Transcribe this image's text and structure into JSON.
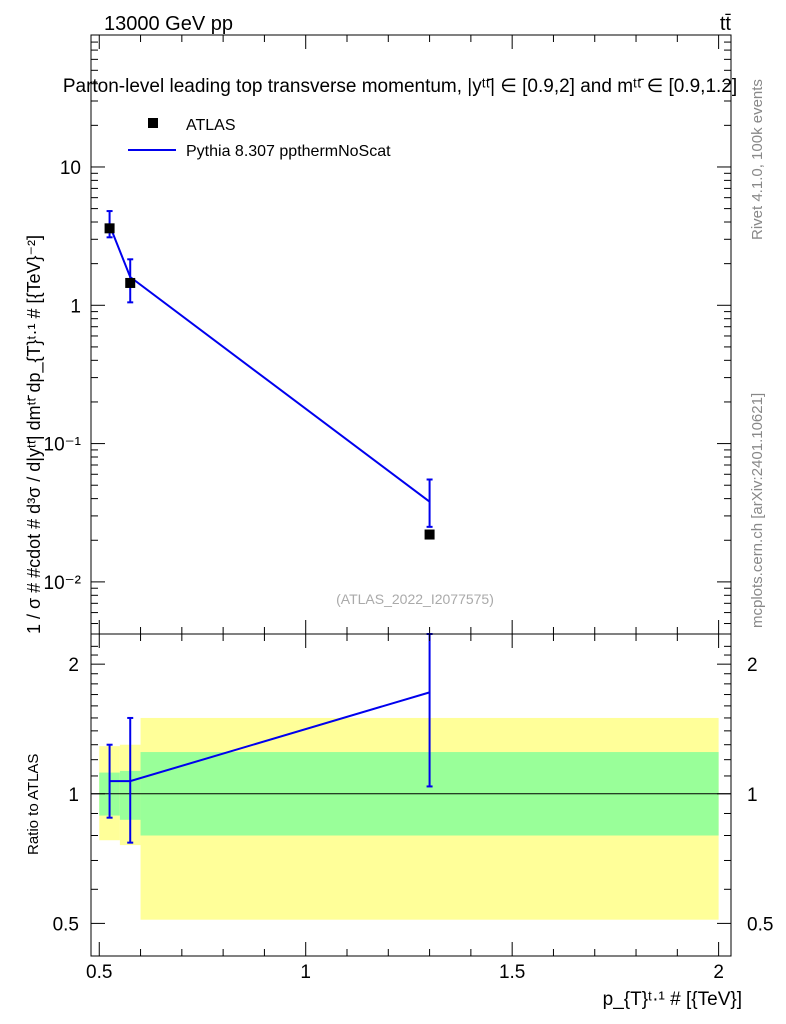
{
  "header": {
    "energy_label": "13000 GeV pp",
    "process_label": "tt̄",
    "title": "Parton-level leading top transverse momentum, |yᵗᵗ̄| ∈ [0.9,2] and mᵗᵗ̄ ∈ [0.9,1.2]"
  },
  "side_labels": {
    "rivet": "Rivet 4.1.0,  100k events",
    "mcplots": "mcplots.cern.ch [arXiv:2401.10621]"
  },
  "colors": {
    "mc_line": "#0000ee",
    "data_marker": "#000000",
    "band_inner": "#99ff99",
    "band_outer": "#ffff99"
  },
  "chart_data": [
    {
      "type": "scatter",
      "panel": "main",
      "title": "Parton-level leading top transverse momentum",
      "analysis_id": "(ATLAS_2022_I2077575)",
      "ylabel": "1 / σ # #cdot # d³σ / d|yᵗᵗ̄| dmᵗᵗ̄ dp_{T}ᵗ·¹ # [{TeV}⁻²]",
      "xlabel": "p_{T}ᵗ·¹ # [{TeV}]",
      "yscale": "log",
      "xlim": [
        0.48,
        2.03
      ],
      "ylim": [
        0.0042,
        90
      ],
      "y_ticks": [
        {
          "value": 0.01,
          "label": "10⁻²"
        },
        {
          "value": 0.1,
          "label": "10⁻¹"
        },
        {
          "value": 1,
          "label": "1"
        },
        {
          "value": 10,
          "label": "10"
        }
      ],
      "legend": {
        "position": "top-left",
        "entries": [
          "ATLAS",
          "Pythia 8.307 ppthermNoScat"
        ]
      },
      "series": [
        {
          "name": "ATLAS",
          "style": "marker",
          "x": [
            0.525,
            0.575,
            1.3
          ],
          "y": [
            3.6,
            1.45,
            0.022
          ]
        },
        {
          "name": "Pythia 8.307 ppthermNoScat",
          "style": "line",
          "x": [
            0.525,
            0.575,
            1.3
          ],
          "y": [
            3.8,
            1.6,
            0.038
          ],
          "yerr_low": [
            3.1,
            1.05,
            0.025
          ],
          "yerr_high": [
            4.8,
            2.15,
            0.055
          ]
        }
      ]
    },
    {
      "type": "line",
      "panel": "ratio",
      "ylabel": "Ratio to ATLAS",
      "xlabel": "p_{T}ᵗ·¹ # [{TeV}]",
      "yscale": "log",
      "xlim": [
        0.48,
        2.03
      ],
      "ylim": [
        0.42,
        2.35
      ],
      "y_ticks": [
        {
          "value": 0.5,
          "label": "0.5"
        },
        {
          "value": 1,
          "label": "1"
        },
        {
          "value": 2,
          "label": "2"
        }
      ],
      "x_ticks": [
        {
          "value": 0.5,
          "label": "0.5"
        },
        {
          "value": 1,
          "label": "1"
        },
        {
          "value": 1.5,
          "label": "1.5"
        },
        {
          "value": 2,
          "label": "2"
        }
      ],
      "reference_line": 1,
      "bands": [
        {
          "x0": 0.5,
          "x1": 0.55,
          "inner": [
            0.89,
            1.12
          ],
          "outer": [
            0.78,
            1.29
          ]
        },
        {
          "x0": 0.55,
          "x1": 0.6,
          "inner": [
            0.87,
            1.13
          ],
          "outer": [
            0.76,
            1.3
          ]
        },
        {
          "x0": 0.6,
          "x1": 2.0,
          "inner": [
            0.8,
            1.25
          ],
          "outer": [
            0.51,
            1.5
          ]
        }
      ],
      "series": [
        {
          "name": "Pythia 8.307 ppthermNoScat",
          "x": [
            0.525,
            0.575,
            1.3
          ],
          "y": [
            1.07,
            1.07,
            1.72
          ],
          "yerr_low": [
            0.88,
            0.77,
            1.04
          ],
          "yerr_high": [
            1.3,
            1.5,
            2.35
          ]
        }
      ]
    }
  ]
}
